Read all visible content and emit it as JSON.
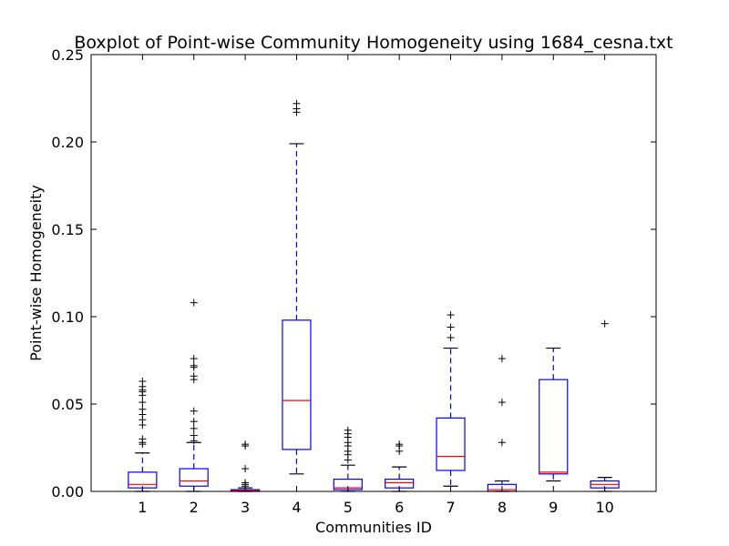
{
  "chart_data": {
    "type": "boxplot",
    "title": "Boxplot of Point-wise Community Homogeneity using 1684_cesna.txt",
    "xlabel": "Communities ID",
    "ylabel": "Point-wise Homogeneity",
    "ylim": [
      0,
      0.25
    ],
    "yticks": [
      "0.00",
      "0.05",
      "0.10",
      "0.15",
      "0.20",
      "0.25"
    ],
    "categories": [
      "1",
      "2",
      "3",
      "4",
      "5",
      "6",
      "7",
      "8",
      "9",
      "10"
    ],
    "boxes": [
      {
        "category": "1",
        "whisker_low": 0.0,
        "q1": 0.002,
        "median": 0.004,
        "q3": 0.011,
        "whisker_high": 0.022,
        "outliers": [
          0.027,
          0.028,
          0.03,
          0.038,
          0.041,
          0.044,
          0.047,
          0.051,
          0.055,
          0.057,
          0.058,
          0.06,
          0.063
        ]
      },
      {
        "category": "2",
        "whisker_low": 0.0,
        "q1": 0.003,
        "median": 0.006,
        "q3": 0.013,
        "whisker_high": 0.028,
        "outliers": [
          0.029,
          0.032,
          0.036,
          0.04,
          0.046,
          0.064,
          0.066,
          0.071,
          0.072,
          0.076,
          0.108
        ]
      },
      {
        "category": "3",
        "whisker_low": 0.0,
        "q1": 0.0,
        "median": 0.0005,
        "q3": 0.001,
        "whisker_high": 0.002,
        "outliers": [
          0.003,
          0.004,
          0.005,
          0.013,
          0.026,
          0.027
        ]
      },
      {
        "category": "4",
        "whisker_low": 0.01,
        "q1": 0.024,
        "median": 0.052,
        "q3": 0.098,
        "whisker_high": 0.199,
        "outliers": [
          0.217,
          0.219,
          0.222
        ]
      },
      {
        "category": "5",
        "whisker_low": 0.0,
        "q1": 0.001,
        "median": 0.002,
        "q3": 0.007,
        "whisker_high": 0.015,
        "outliers": [
          0.018,
          0.021,
          0.023,
          0.026,
          0.028,
          0.031,
          0.033,
          0.035
        ]
      },
      {
        "category": "6",
        "whisker_low": 0.0,
        "q1": 0.002,
        "median": 0.005,
        "q3": 0.007,
        "whisker_high": 0.014,
        "outliers": [
          0.023,
          0.026,
          0.027
        ]
      },
      {
        "category": "7",
        "whisker_low": 0.003,
        "q1": 0.012,
        "median": 0.02,
        "q3": 0.042,
        "whisker_high": 0.082,
        "outliers": [
          0.088,
          0.094,
          0.101
        ]
      },
      {
        "category": "8",
        "whisker_low": 0.0,
        "q1": 0.0,
        "median": 0.001,
        "q3": 0.004,
        "whisker_high": 0.006,
        "outliers": [
          0.028,
          0.051,
          0.076
        ]
      },
      {
        "category": "9",
        "whisker_low": 0.006,
        "q1": 0.01,
        "median": 0.011,
        "q3": 0.064,
        "whisker_high": 0.082,
        "outliers": []
      },
      {
        "category": "10",
        "whisker_low": 0.0,
        "q1": 0.002,
        "median": 0.004,
        "q3": 0.006,
        "whisker_high": 0.008,
        "outliers": [
          0.096
        ]
      }
    ],
    "colors": {
      "box": "#0000ff",
      "median": "#ff0000",
      "cap": "#000000",
      "outlier": "#000000",
      "axes": "#000000"
    },
    "grid": false,
    "legend": "none"
  }
}
